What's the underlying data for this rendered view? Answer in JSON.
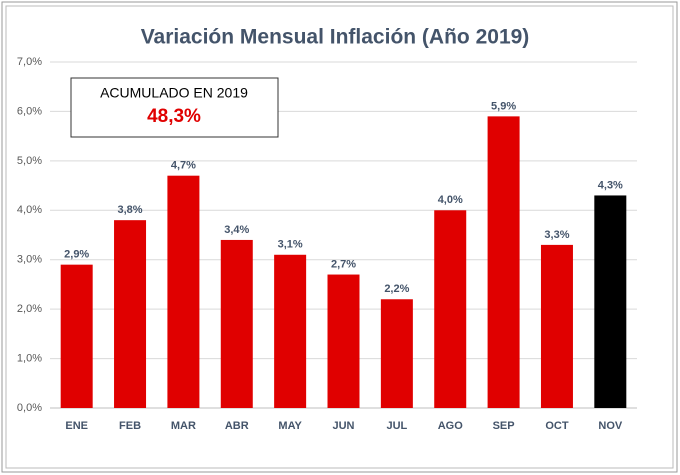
{
  "chart_data": {
    "type": "bar",
    "title": "Variación Mensual Inflación (Año 2019)",
    "categories": [
      "ENE",
      "FEB",
      "MAR",
      "ABR",
      "MAY",
      "JUN",
      "JUL",
      "AGO",
      "SEP",
      "OCT",
      "NOV"
    ],
    "values": [
      2.9,
      3.8,
      4.7,
      3.4,
      3.1,
      2.7,
      2.2,
      4.0,
      5.9,
      3.3,
      4.3
    ],
    "value_labels": [
      "2,9%",
      "3,8%",
      "4,7%",
      "3,4%",
      "3,1%",
      "2,7%",
      "2,2%",
      "4,0%",
      "5,9%",
      "3,3%",
      "4,3%"
    ],
    "colors": [
      "#e00000",
      "#e00000",
      "#e00000",
      "#e00000",
      "#e00000",
      "#e00000",
      "#e00000",
      "#e00000",
      "#e00000",
      "#e00000",
      "#000000"
    ],
    "ylim": [
      0,
      7
    ],
    "yticks": [
      {
        "value": 0,
        "label": "0,0%"
      },
      {
        "value": 1,
        "label": "1,0%"
      },
      {
        "value": 2,
        "label": "2,0%"
      },
      {
        "value": 3,
        "label": "3,0%"
      },
      {
        "value": 4,
        "label": "4,0%"
      },
      {
        "value": 5,
        "label": "5,0%"
      },
      {
        "value": 6,
        "label": "6,0%"
      },
      {
        "value": 7,
        "label": "7,0%"
      }
    ],
    "grid": true,
    "annotation": {
      "title": "ACUMULADO EN 2019",
      "text": "48,3%"
    }
  }
}
